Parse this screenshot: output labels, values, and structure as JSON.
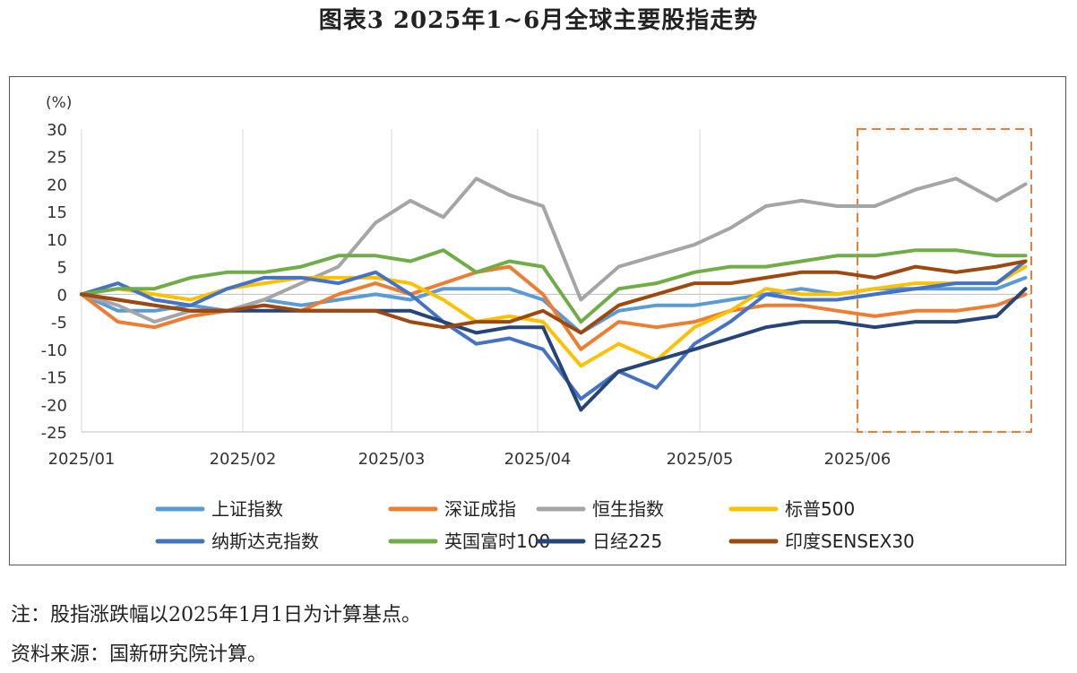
{
  "page": {
    "title": "图表3 2025年1~6月全球主要股指走势",
    "note": "注：股指涨跌幅以2025年1月1日为计算基点。",
    "source": "资料来源：国新研究院计算。"
  },
  "chart_data": {
    "type": "line",
    "title": "图表3 2025年1~6月全球主要股指走势",
    "ylabel": "(%)",
    "xlabel": "",
    "ylim": [
      -25,
      30
    ],
    "yticks": [
      "30",
      "25",
      "20",
      "15",
      "10",
      "5",
      "0",
      "-5",
      "-10",
      "-15",
      "-20",
      "-25"
    ],
    "xticks": [
      "2025/01",
      "2025/02",
      "2025/03",
      "2025/04",
      "2025/05",
      "2025/06"
    ],
    "grid": "vertical",
    "legend_position": "bottom",
    "annotation": "dashed box highlighting 2025/06",
    "x": [
      "01-01",
      "01-08",
      "01-15",
      "01-22",
      "01-29",
      "02-05",
      "02-12",
      "02-19",
      "02-26",
      "03-05",
      "03-12",
      "03-19",
      "03-26",
      "04-02",
      "04-09",
      "04-16",
      "04-23",
      "04-30",
      "05-07",
      "05-14",
      "05-21",
      "05-28",
      "06-04",
      "06-11",
      "06-18",
      "06-25",
      "06-30"
    ],
    "series": [
      {
        "name": "上证指数",
        "color": "#5b9bd5",
        "values": [
          0,
          -3,
          -3,
          -2,
          -3,
          -1,
          -2,
          -1,
          0,
          -1,
          1,
          1,
          1,
          -1,
          -7,
          -3,
          -2,
          -2,
          -1,
          0,
          1,
          0,
          1,
          1,
          1,
          1,
          3
        ]
      },
      {
        "name": "深证成指",
        "color": "#ed7d31",
        "values": [
          0,
          -5,
          -6,
          -4,
          -3,
          -2,
          -3,
          0,
          2,
          0,
          2,
          4,
          5,
          0,
          -10,
          -5,
          -6,
          -5,
          -3,
          -2,
          -2,
          -3,
          -4,
          -3,
          -3,
          -2,
          0
        ]
      },
      {
        "name": "恒生指数",
        "color": "#a5a5a5",
        "values": [
          0,
          -2,
          -5,
          -3,
          -3,
          -1,
          2,
          5,
          13,
          17,
          14,
          21,
          18,
          16,
          -1,
          5,
          7,
          9,
          12,
          16,
          17,
          16,
          16,
          19,
          21,
          17,
          20
        ]
      },
      {
        "name": "标普500",
        "color": "#ffc000",
        "values": [
          0,
          1,
          0,
          -1,
          1,
          2,
          3,
          3,
          3,
          2,
          -1,
          -5,
          -4,
          -5,
          -13,
          -9,
          -12,
          -6,
          -3,
          1,
          0,
          0,
          1,
          2,
          2,
          2,
          5
        ]
      },
      {
        "name": "纳斯达克指数",
        "color": "#4472c4",
        "values": [
          0,
          2,
          -1,
          -2,
          1,
          3,
          3,
          2,
          4,
          0,
          -5,
          -9,
          -8,
          -10,
          -19,
          -14,
          -17,
          -9,
          -5,
          0,
          -1,
          -1,
          0,
          1,
          2,
          2,
          6
        ]
      },
      {
        "name": "英国富时100",
        "color": "#70ad47",
        "values": [
          0,
          1,
          1,
          3,
          4,
          4,
          5,
          7,
          7,
          6,
          8,
          4,
          6,
          5,
          -5,
          1,
          2,
          4,
          5,
          5,
          6,
          7,
          7,
          8,
          8,
          7,
          7
        ]
      },
      {
        "name": "日经225",
        "color": "#264478",
        "values": [
          0,
          -1,
          -2,
          -3,
          -3,
          -3,
          -3,
          -3,
          -3,
          -3,
          -5,
          -7,
          -6,
          -6,
          -21,
          -14,
          -12,
          -10,
          -8,
          -6,
          -5,
          -5,
          -6,
          -5,
          -5,
          -4,
          1
        ]
      },
      {
        "name": "印度SENSEX30",
        "color": "#9e480e",
        "values": [
          0,
          -1,
          -2,
          -3,
          -3,
          -2,
          -3,
          -3,
          -3,
          -5,
          -6,
          -5,
          -5,
          -3,
          -7,
          -2,
          0,
          2,
          2,
          3,
          4,
          4,
          3,
          5,
          4,
          5,
          6
        ]
      }
    ]
  }
}
